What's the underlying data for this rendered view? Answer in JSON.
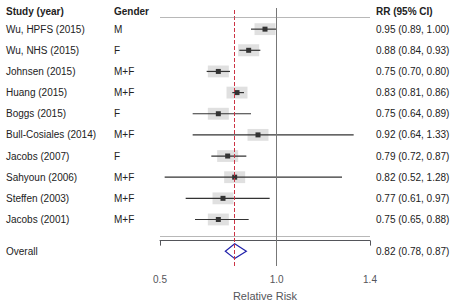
{
  "chart_data": {
    "type": "forest",
    "xlabel": "Relative Risk",
    "columns": [
      "Study (year)",
      "Gender",
      "RR (95% CI)"
    ],
    "categories": [
      "Wu, HPFS (2015)",
      "Wu, NHS (2015)",
      "Johnsen (2015)",
      "Huang (2015)",
      "Boggs (2015)",
      "Bull-Cosiales (2014)",
      "Jacobs (2007)",
      "Sahyoun (2006)",
      "Steffen (2003)",
      "Jacobs (2001)"
    ],
    "gender": [
      "M",
      "F",
      "M+F",
      "M+F",
      "F",
      "M+F",
      "F",
      "M+F",
      "M+F",
      "M+F"
    ],
    "values": [
      0.95,
      0.88,
      0.75,
      0.83,
      0.75,
      0.92,
      0.79,
      0.82,
      0.77,
      0.75
    ],
    "ci_low": [
      0.89,
      0.84,
      0.7,
      0.81,
      0.64,
      0.64,
      0.72,
      0.52,
      0.61,
      0.65
    ],
    "ci_high": [
      1.0,
      0.93,
      0.8,
      0.86,
      0.89,
      1.33,
      0.87,
      1.28,
      0.97,
      0.88
    ],
    "value_labels": [
      "0.95 (0.89, 1.00)",
      "0.88 (0.84, 0.93)",
      "0.75 (0.70, 0.80)",
      "0.83 (0.81, 0.86)",
      "0.75 (0.64, 0.89)",
      "0.92 (0.64, 1.33)",
      "0.79 (0.72, 0.87)",
      "0.82 (0.52, 1.28)",
      "0.77 (0.61, 0.97)",
      "0.75 (0.65, 0.88)"
    ],
    "overall": {
      "name": "Overall",
      "value": 0.82,
      "ci_low": 0.78,
      "ci_high": 0.87,
      "label": "0.82 (0.78, 0.87)",
      "color": "#2222aa"
    },
    "reference_lines": [
      {
        "x": 1.0,
        "color": "#777777",
        "line_style": "solid"
      },
      {
        "x": 0.82,
        "color": "#cc3344",
        "line_style": "dashed"
      }
    ],
    "xlim": [
      0.5,
      1.4
    ],
    "xticks": [
      0.5,
      {
        "value": 1.0,
        "label": "1.0"
      },
      1.4
    ],
    "grid": false
  }
}
